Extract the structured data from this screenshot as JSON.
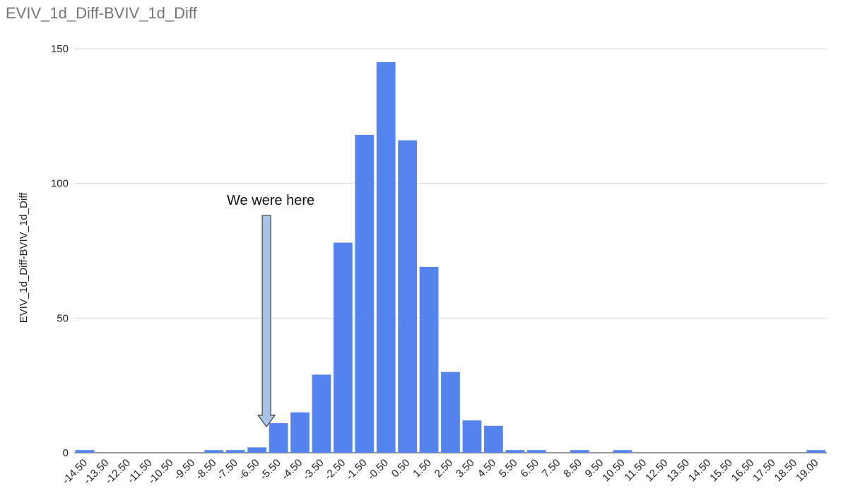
{
  "chart_data": {
    "type": "bar",
    "title": "EVIV_1d_Diff-BVIV_1d_Diff",
    "xlabel": "",
    "ylabel": "EVIV_1d_Diff-BVIV_1d_Diff",
    "ylim": [
      0,
      150
    ],
    "yticks": [
      0,
      50,
      100,
      150
    ],
    "grid": true,
    "legend": "none",
    "bar_color": "#5584EE",
    "grid_color": "#D9D9D9",
    "arrow_color": "#A8C4E6",
    "categories": [
      "-14.50",
      "-13.50",
      "-12.50",
      "-11.50",
      "-10.50",
      "-9.50",
      "-8.50",
      "-7.50",
      "-6.50",
      "-5.50",
      "-4.50",
      "-3.50",
      "-2.50",
      "-1.50",
      "-0.50",
      "0.50",
      "1.50",
      "2.50",
      "3.50",
      "4.50",
      "5.50",
      "6.50",
      "7.50",
      "8.50",
      "9.50",
      "10.50",
      "11.50",
      "12.50",
      "13.50",
      "14.50",
      "15.50",
      "16.50",
      "17.50",
      "18.50",
      "19.00"
    ],
    "values": [
      1,
      0,
      0,
      0,
      0,
      0,
      1,
      1,
      2,
      11,
      15,
      29,
      78,
      118,
      145,
      116,
      69,
      30,
      12,
      10,
      1,
      1,
      0,
      1,
      0,
      1,
      0,
      0,
      0,
      0,
      0,
      0,
      0,
      0,
      1
    ],
    "annotation": {
      "text": "We were here",
      "target_category": "-5.50"
    }
  }
}
